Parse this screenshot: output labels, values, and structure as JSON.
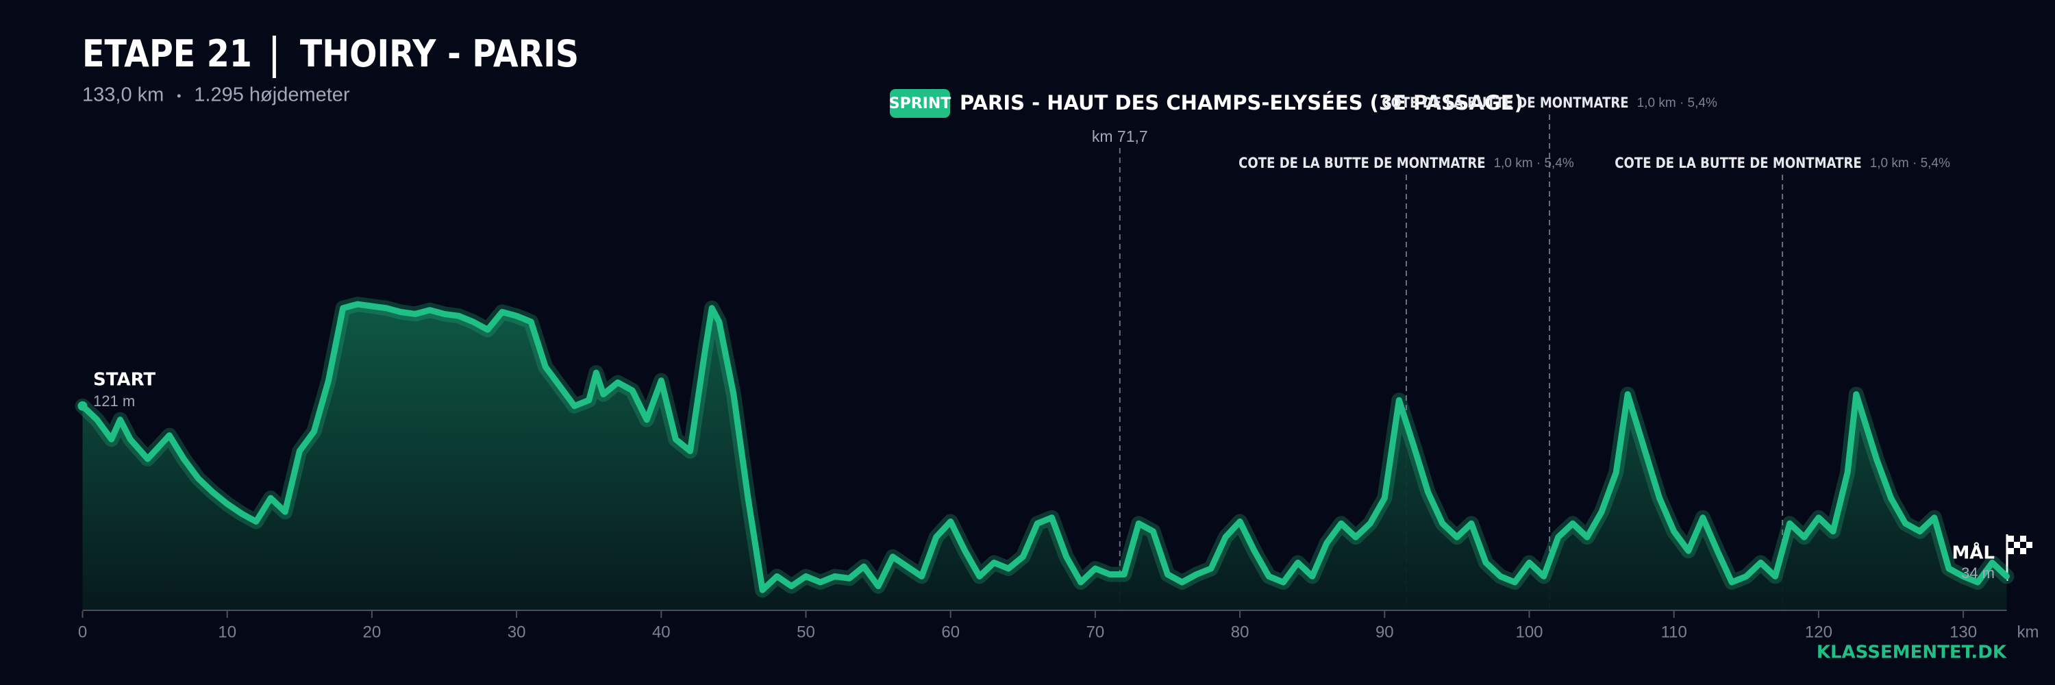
{
  "chart_data": {
    "type": "area",
    "title": "ETAPE 21",
    "route": "THOIRY - PARIS",
    "distance": "133,0 km",
    "climbing": "1.295 højdemeter",
    "start_label": "START",
    "start_elevation": "121 m",
    "finish_label": "MÅL",
    "finish_elevation": "34 m",
    "x_unit": "km",
    "brand": "KLASSEMENTET.DK",
    "color": "#1fbf85",
    "x": [
      0,
      1,
      2,
      2.6,
      3.3,
      4.5,
      5.5,
      6,
      7,
      8,
      9,
      10,
      11,
      12,
      13,
      14,
      15,
      16,
      17,
      18,
      19,
      20,
      21,
      22,
      23,
      24,
      25,
      26,
      27,
      28,
      29,
      30,
      31,
      32,
      33,
      34,
      35,
      35.5,
      36,
      37,
      38,
      39,
      40,
      41,
      42,
      43,
      43.5,
      44,
      45,
      46,
      47,
      48,
      49,
      50,
      51,
      52,
      53,
      54,
      55,
      56,
      57,
      58,
      59,
      60,
      61,
      62,
      63,
      64,
      65,
      66,
      67,
      68,
      69,
      70,
      71,
      72,
      73,
      74,
      75,
      76,
      77,
      78,
      79,
      80,
      81,
      82,
      83,
      84,
      85,
      86,
      87,
      88,
      89,
      90,
      91,
      92,
      93,
      94,
      95,
      96,
      97,
      98,
      99,
      100,
      101,
      102,
      103,
      104,
      105,
      106,
      106.8,
      108,
      109,
      110,
      111,
      112,
      113,
      114,
      115,
      116,
      117,
      118,
      119,
      120,
      121,
      122,
      122.6,
      124,
      125,
      126,
      127,
      128,
      129,
      130,
      131,
      132,
      133
    ],
    "values": [
      121,
      114,
      104,
      114,
      104,
      94,
      102,
      106,
      94,
      84,
      77,
      71,
      66,
      62,
      74,
      67,
      98,
      108,
      134,
      171,
      173,
      172,
      171,
      169,
      168,
      170,
      168,
      167,
      164,
      160,
      169,
      167,
      164,
      141,
      131,
      121,
      124,
      138,
      127,
      133,
      129,
      114,
      134,
      104,
      98,
      148,
      171,
      164,
      127,
      74,
      27,
      34,
      29,
      34,
      31,
      34,
      33,
      39,
      29,
      44,
      39,
      34,
      54,
      62,
      47,
      34,
      41,
      38,
      44,
      61,
      64,
      44,
      31,
      38,
      35,
      35,
      61,
      57,
      35,
      31,
      35,
      38,
      54,
      62,
      47,
      34,
      31,
      41,
      34,
      51,
      61,
      54,
      61,
      74,
      124,
      101,
      77,
      61,
      54,
      61,
      41,
      34,
      31,
      41,
      34,
      54,
      61,
      54,
      67,
      87,
      127,
      98,
      74,
      57,
      47,
      64,
      47,
      31,
      34,
      41,
      34,
      61,
      54,
      64,
      57,
      87,
      127,
      94,
      74,
      61,
      57,
      64,
      38,
      34,
      31,
      41,
      34
    ],
    "xlim": [
      0,
      133
    ],
    "ylim": [
      17,
      250
    ],
    "xticks": [
      0,
      10,
      20,
      30,
      40,
      50,
      60,
      70,
      80,
      90,
      100,
      110,
      120,
      130
    ],
    "sprint": {
      "badge": "SPRINT",
      "name": "PARIS - HAUT DES CHAMPS-ELYSÉES (3E PASSAGE)",
      "km": 71.7,
      "km_label": "km 71,7"
    },
    "climbs": [
      {
        "name": "COTE DE LA BUTTE DE MONTMATRE",
        "detail": "1,0 km · 5,4%",
        "km": 91.5
      },
      {
        "name": "COTE DE LA BUTTE DE MONTMATRE",
        "detail": "1,0 km · 5,4%",
        "km": 101.4
      },
      {
        "name": "COTE DE LA BUTTE DE MONTMATRE",
        "detail": "1,0 km · 5,4%",
        "km": 117.5
      }
    ]
  }
}
